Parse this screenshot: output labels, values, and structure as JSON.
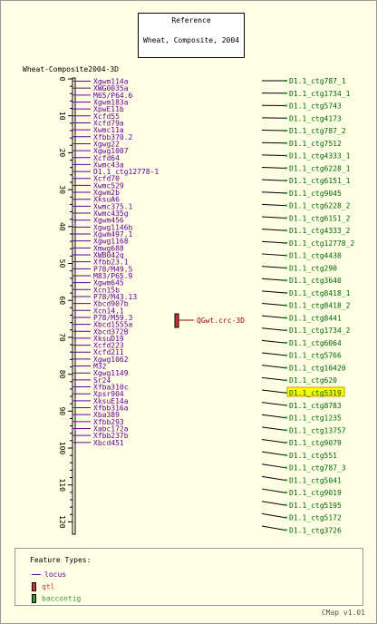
{
  "reference": {
    "line1": "Reference",
    "line2": "Wheat, Composite, 2004"
  },
  "map": {
    "title": "Wheat-Composite2004-3D",
    "axis_ticks": [
      "0",
      "10",
      "20",
      "30",
      "40",
      "50",
      "60",
      "70",
      "80",
      "90",
      "100",
      "110",
      "120"
    ],
    "loci": [
      "Xgwm114a",
      "XWG0035a",
      "M65/P64.6",
      "Xgwm183a",
      "XpwE11b",
      "Xcfd55",
      "Xcfd79a",
      "Xwmc11a",
      "Xfbb370.2",
      "Xgwg22",
      "Xgwg1007",
      "Xcfd64",
      "Xwmc43a",
      "D1.1_ctg12778-1",
      "Xcfd70",
      "Xwmc529",
      "Xgwm2b",
      "XksuA6",
      "Xwmc375.1",
      "Xwmc435g",
      "Xgwm456",
      "Xgwg1146b",
      "Xgwm497.1",
      "Xgwg1168",
      "Xmwg688",
      "XWB042q",
      "Xfbb23.1",
      "P78/M49.5",
      "M83/P65.9",
      "Xgwm645",
      "Xcn15b",
      "P78/M43.13",
      "Xbcd907b",
      "Xcn14.1",
      "P78/M59.3",
      "Xbcd1555a",
      "Xbcd372B",
      "XksuD19",
      "Xcfd223",
      "Xcfd211",
      "Xgwg1062",
      "M32",
      "Xgwg1149",
      "Sr24",
      "Xfba310c",
      "Xpsr904",
      "XksuE14a",
      "Xfbb316a",
      "Xba389",
      "Xfbb293",
      "Xabc172a",
      "Xfbb237b",
      "Xbcd451"
    ],
    "qtl": {
      "label": "QGwt.crc-3D",
      "color": "#cc3333"
    }
  },
  "contigs": [
    "D1.1_ctg787_1",
    "D1.1_ctg1734_1",
    "D1.1_ctg5743",
    "D1.1_ctg4173",
    "D1.1_ctg787_2",
    "D1.1_ctg7512",
    "D1.1_ctg4333_1",
    "D1.1_ctg6228_1",
    "D1.1_ctg6151_1",
    "D1.1_ctg9045",
    "D1.1_ctg6228_2",
    "D1.1_ctg6151_2",
    "D1.1_ctg4333_2",
    "D1.1_ctg12778_2",
    "D1.1_ctg4430",
    "D1.1_ctg290",
    "D1.1_ctg3640",
    "D1.1_ctg8418_1",
    "D1.1_ctg8418_2",
    "D1.1_ctg8441",
    "D1.1_ctg1734_2",
    "D1.1_ctg6064",
    "D1.1_ctg5766",
    "D1.1_ctg10420",
    "D1.1_ctg620",
    "D1.1_ctg5319",
    "D1.1_ctg8783",
    "D1.1_ctg1235",
    "D1.1_ctg13757",
    "D1.1_ctg9079",
    "D1.1_ctg551",
    "D1.1_ctg787_3",
    "D1.1_ctg5041",
    "D1.1_ctg9019",
    "D1.1_ctg5195",
    "D1.1_ctg5172",
    "D1.1_ctg3726"
  ],
  "highlighted_contig": "D1.1_ctg5319",
  "legend": {
    "header": "Feature Types:",
    "items": [
      {
        "label": "locus",
        "color": "#660099"
      },
      {
        "label": "qtl",
        "color": "#cc3333"
      },
      {
        "label": "baccontig",
        "color": "#339933"
      }
    ]
  },
  "footer": "CMap v1.01",
  "colors": {
    "locus": "#660099",
    "contig": "#006600",
    "qtl": "#aa0000",
    "highlight_bg": "#ffff00"
  }
}
